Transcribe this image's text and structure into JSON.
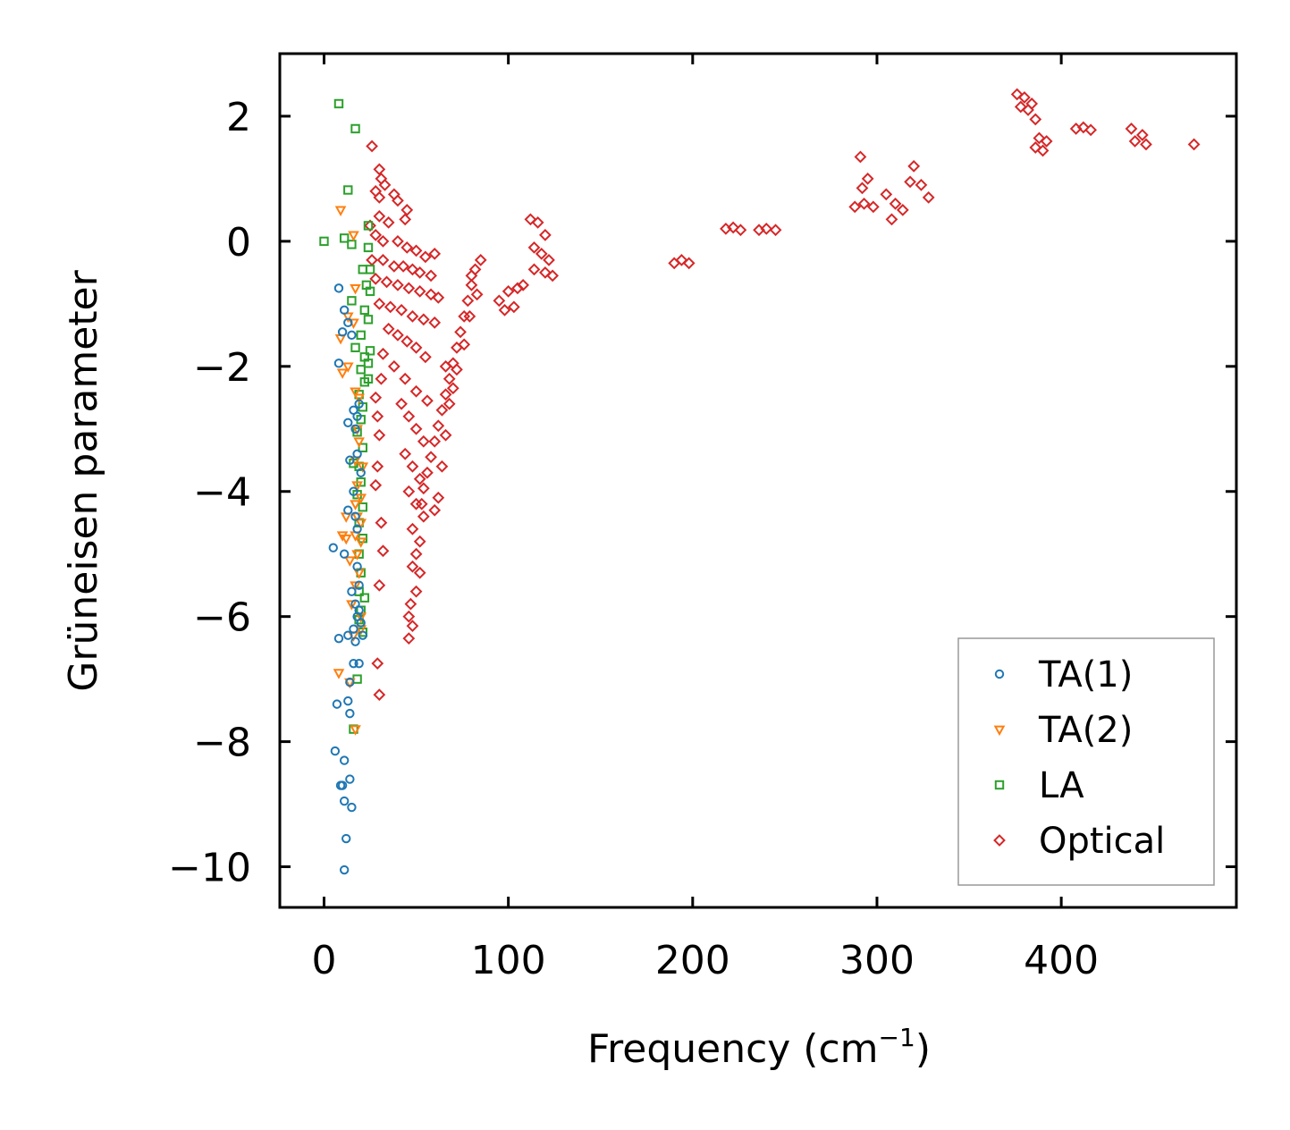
{
  "chart_data": {
    "type": "scatter",
    "title": "",
    "xlabel": "Frequency (cm",
    "xlabel_sup": "−1",
    "xlabel_end": ")",
    "ylabel": "Grüneisen parameter",
    "xlim": [
      -24,
      495
    ],
    "ylim": [
      -10.65,
      3.0
    ],
    "xticks": [
      0,
      100,
      200,
      300,
      400
    ],
    "xtick_labels": [
      "0",
      "100",
      "200",
      "300",
      "400"
    ],
    "yticks": [
      2,
      0,
      -2,
      -4,
      -6,
      -8,
      -10
    ],
    "ytick_labels": [
      "2",
      "0",
      "−2",
      "−4",
      "−6",
      "−8",
      "−10"
    ],
    "legend_position": "lower-right",
    "colors": {
      "ta1": "#1f77b4",
      "ta2": "#ff7f0e",
      "la": "#2ca02c",
      "optical": "#d62728"
    },
    "series": [
      {
        "name": "TA(1)",
        "key": "ta1",
        "marker": "circle",
        "points": [
          [
            8,
            -0.75
          ],
          [
            11,
            -1.1
          ],
          [
            13,
            -1.3
          ],
          [
            10,
            -1.45
          ],
          [
            15,
            -1.5
          ],
          [
            8,
            -1.95
          ],
          [
            13,
            -2.9
          ],
          [
            16,
            -2.7
          ],
          [
            17,
            -3.0
          ],
          [
            18,
            -2.8
          ],
          [
            19,
            -2.6
          ],
          [
            14,
            -3.5
          ],
          [
            18,
            -3.4
          ],
          [
            20,
            -3.7
          ],
          [
            16,
            -4.0
          ],
          [
            17,
            -4.4
          ],
          [
            18,
            -4.6
          ],
          [
            13,
            -4.3
          ],
          [
            5,
            -4.9
          ],
          [
            11,
            -5.0
          ],
          [
            18,
            -5.2
          ],
          [
            19,
            -5.5
          ],
          [
            15,
            -5.6
          ],
          [
            17,
            -5.8
          ],
          [
            19,
            -5.9
          ],
          [
            18,
            -6.0
          ],
          [
            20,
            -6.1
          ],
          [
            16,
            -6.2
          ],
          [
            13,
            -6.3
          ],
          [
            8,
            -6.35
          ],
          [
            17,
            -6.4
          ],
          [
            21,
            -6.3
          ],
          [
            16,
            -6.75
          ],
          [
            19,
            -6.75
          ],
          [
            14,
            -7.05
          ],
          [
            7,
            -7.4
          ],
          [
            13,
            -7.35
          ],
          [
            14,
            -7.55
          ],
          [
            6,
            -8.15
          ],
          [
            11,
            -8.3
          ],
          [
            9,
            -8.7
          ],
          [
            10,
            -8.7
          ],
          [
            14,
            -8.6
          ],
          [
            11,
            -8.95
          ],
          [
            15,
            -9.05
          ],
          [
            12,
            -9.55
          ],
          [
            11,
            -10.05
          ]
        ]
      },
      {
        "name": "TA(2)",
        "key": "ta2",
        "marker": "triangle-down",
        "points": [
          [
            9,
            0.5
          ],
          [
            16,
            0.1
          ],
          [
            17,
            -0.75
          ],
          [
            13,
            -1.2
          ],
          [
            16,
            -1.3
          ],
          [
            9,
            -1.55
          ],
          [
            10,
            -2.1
          ],
          [
            13,
            -2.0
          ],
          [
            17,
            -2.4
          ],
          [
            19,
            -2.5
          ],
          [
            18,
            -3.0
          ],
          [
            19,
            -3.2
          ],
          [
            17,
            -3.5
          ],
          [
            21,
            -3.6
          ],
          [
            18,
            -3.9
          ],
          [
            20,
            -4.1
          ],
          [
            17,
            -4.2
          ],
          [
            18,
            -4.4
          ],
          [
            12,
            -4.4
          ],
          [
            20,
            -4.5
          ],
          [
            17,
            -4.7
          ],
          [
            10,
            -4.7
          ],
          [
            12,
            -4.75
          ],
          [
            20,
            -4.8
          ],
          [
            18,
            -5.0
          ],
          [
            19,
            -5.3
          ],
          [
            17,
            -5.5
          ],
          [
            14,
            -5.1
          ],
          [
            15,
            -5.8
          ],
          [
            20,
            -6.0
          ],
          [
            16,
            -6.3
          ],
          [
            20,
            -6.2
          ],
          [
            8,
            -6.9
          ],
          [
            14,
            -7.05
          ],
          [
            17,
            -7.8
          ]
        ]
      },
      {
        "name": "LA",
        "key": "la",
        "marker": "square",
        "points": [
          [
            8,
            2.2
          ],
          [
            17,
            1.8
          ],
          [
            13,
            0.82
          ],
          [
            0,
            0.0
          ],
          [
            11,
            0.05
          ],
          [
            15,
            -0.05
          ],
          [
            24,
            0.25
          ],
          [
            24,
            -0.1
          ],
          [
            21,
            -0.45
          ],
          [
            25,
            -0.45
          ],
          [
            23,
            -0.7
          ],
          [
            25,
            -0.8
          ],
          [
            15,
            -0.95
          ],
          [
            22,
            -1.1
          ],
          [
            24,
            -1.25
          ],
          [
            20,
            -1.5
          ],
          [
            17,
            -1.7
          ],
          [
            25,
            -1.75
          ],
          [
            22,
            -1.85
          ],
          [
            24,
            -1.95
          ],
          [
            20,
            -2.05
          ],
          [
            22,
            -2.25
          ],
          [
            24,
            -2.2
          ],
          [
            19,
            -2.45
          ],
          [
            21,
            -2.65
          ],
          [
            20,
            -2.85
          ],
          [
            18,
            -3.05
          ],
          [
            21,
            -3.3
          ],
          [
            16,
            -3.55
          ],
          [
            19,
            -3.6
          ],
          [
            20,
            -3.85
          ],
          [
            18,
            -4.05
          ],
          [
            21,
            -4.25
          ],
          [
            19,
            -4.5
          ],
          [
            21,
            -4.75
          ],
          [
            19,
            -5.0
          ],
          [
            20,
            -5.3
          ],
          [
            19,
            -5.6
          ],
          [
            22,
            -5.7
          ],
          [
            20,
            -5.9
          ],
          [
            19,
            -6.05
          ],
          [
            21,
            -6.25
          ],
          [
            18,
            -7.0
          ],
          [
            16,
            -7.8
          ]
        ]
      },
      {
        "name": "Optical",
        "key": "optical",
        "marker": "diamond",
        "points": [
          [
            26,
            1.52
          ],
          [
            30,
            1.15
          ],
          [
            31,
            1.0
          ],
          [
            33,
            0.9
          ],
          [
            28,
            0.8
          ],
          [
            30,
            0.7
          ],
          [
            38,
            0.75
          ],
          [
            40,
            0.65
          ],
          [
            45,
            0.5
          ],
          [
            30,
            0.4
          ],
          [
            35,
            0.3
          ],
          [
            44,
            0.35
          ],
          [
            25,
            0.25
          ],
          [
            28,
            0.1
          ],
          [
            32,
            0.0
          ],
          [
            40,
            0.0
          ],
          [
            45,
            -0.1
          ],
          [
            50,
            -0.15
          ],
          [
            55,
            -0.25
          ],
          [
            60,
            -0.2
          ],
          [
            26,
            -0.3
          ],
          [
            32,
            -0.3
          ],
          [
            38,
            -0.4
          ],
          [
            43,
            -0.4
          ],
          [
            48,
            -0.45
          ],
          [
            52,
            -0.5
          ],
          [
            58,
            -0.55
          ],
          [
            28,
            -0.6
          ],
          [
            34,
            -0.65
          ],
          [
            40,
            -0.7
          ],
          [
            46,
            -0.75
          ],
          [
            52,
            -0.8
          ],
          [
            58,
            -0.85
          ],
          [
            62,
            -0.9
          ],
          [
            30,
            -1.0
          ],
          [
            36,
            -1.05
          ],
          [
            42,
            -1.1
          ],
          [
            48,
            -1.2
          ],
          [
            54,
            -1.25
          ],
          [
            60,
            -1.3
          ],
          [
            35,
            -1.4
          ],
          [
            40,
            -1.5
          ],
          [
            45,
            -1.6
          ],
          [
            50,
            -1.7
          ],
          [
            55,
            -1.85
          ],
          [
            38,
            -2.0
          ],
          [
            44,
            -2.2
          ],
          [
            50,
            -2.4
          ],
          [
            56,
            -2.55
          ],
          [
            42,
            -2.6
          ],
          [
            46,
            -2.8
          ],
          [
            50,
            -3.0
          ],
          [
            54,
            -3.2
          ],
          [
            44,
            -3.4
          ],
          [
            48,
            -3.6
          ],
          [
            52,
            -3.8
          ],
          [
            46,
            -4.0
          ],
          [
            50,
            -4.2
          ],
          [
            54,
            -4.4
          ],
          [
            48,
            -4.6
          ],
          [
            52,
            -4.8
          ],
          [
            50,
            -5.0
          ],
          [
            48,
            -5.2
          ],
          [
            52,
            -5.3
          ],
          [
            50,
            -5.6
          ],
          [
            47,
            -5.8
          ],
          [
            46,
            -6.0
          ],
          [
            48,
            -6.15
          ],
          [
            46,
            -6.35
          ],
          [
            31,
            -4.5
          ],
          [
            32,
            -4.95
          ],
          [
            30,
            -5.5
          ],
          [
            29,
            -6.75
          ],
          [
            30,
            -7.25
          ],
          [
            29,
            -3.6
          ],
          [
            30,
            -3.1
          ],
          [
            28,
            -3.9
          ],
          [
            28,
            -2.5
          ],
          [
            29,
            -2.8
          ],
          [
            31,
            -2.2
          ],
          [
            32,
            -1.8
          ],
          [
            85,
            -0.3
          ],
          [
            82,
            -0.45
          ],
          [
            80,
            -0.7
          ],
          [
            78,
            -0.95
          ],
          [
            76,
            -1.2
          ],
          [
            74,
            -1.45
          ],
          [
            72,
            -1.7
          ],
          [
            70,
            -1.95
          ],
          [
            68,
            -2.2
          ],
          [
            66,
            -2.45
          ],
          [
            64,
            -2.7
          ],
          [
            62,
            -2.95
          ],
          [
            60,
            -3.2
          ],
          [
            58,
            -3.45
          ],
          [
            56,
            -3.7
          ],
          [
            54,
            -3.95
          ],
          [
            53,
            -4.2
          ],
          [
            66,
            -2.0
          ],
          [
            68,
            -2.6
          ],
          [
            66,
            -3.1
          ],
          [
            64,
            -3.6
          ],
          [
            62,
            -4.1
          ],
          [
            60,
            -4.3
          ],
          [
            80,
            -0.55
          ],
          [
            83,
            -0.85
          ],
          [
            79,
            -1.2
          ],
          [
            76,
            -1.65
          ],
          [
            72,
            -2.05
          ],
          [
            70,
            -2.35
          ],
          [
            95,
            -0.95
          ],
          [
            100,
            -0.8
          ],
          [
            105,
            -0.75
          ],
          [
            98,
            -1.1
          ],
          [
            103,
            -1.05
          ],
          [
            108,
            -0.7
          ],
          [
            112,
            0.35
          ],
          [
            116,
            0.3
          ],
          [
            120,
            0.1
          ],
          [
            114,
            -0.1
          ],
          [
            118,
            -0.2
          ],
          [
            122,
            -0.3
          ],
          [
            114,
            -0.45
          ],
          [
            120,
            -0.5
          ],
          [
            124,
            -0.55
          ],
          [
            190,
            -0.35
          ],
          [
            194,
            -0.3
          ],
          [
            198,
            -0.35
          ],
          [
            218,
            0.2
          ],
          [
            222,
            0.22
          ],
          [
            226,
            0.18
          ],
          [
            236,
            0.18
          ],
          [
            240,
            0.2
          ],
          [
            245,
            0.18
          ],
          [
            291,
            1.35
          ],
          [
            295,
            1.0
          ],
          [
            293,
            0.6
          ],
          [
            288,
            0.55
          ],
          [
            298,
            0.55
          ],
          [
            292,
            0.85
          ],
          [
            305,
            0.75
          ],
          [
            310,
            0.6
          ],
          [
            314,
            0.5
          ],
          [
            308,
            0.35
          ],
          [
            320,
            1.2
          ],
          [
            324,
            0.9
          ],
          [
            328,
            0.7
          ],
          [
            318,
            0.95
          ],
          [
            376,
            2.35
          ],
          [
            380,
            2.3
          ],
          [
            384,
            2.2
          ],
          [
            378,
            2.15
          ],
          [
            382,
            2.1
          ],
          [
            386,
            1.95
          ],
          [
            388,
            1.65
          ],
          [
            392,
            1.6
          ],
          [
            386,
            1.5
          ],
          [
            390,
            1.45
          ],
          [
            408,
            1.8
          ],
          [
            412,
            1.82
          ],
          [
            416,
            1.78
          ],
          [
            438,
            1.8
          ],
          [
            444,
            1.7
          ],
          [
            440,
            1.6
          ],
          [
            446,
            1.55
          ],
          [
            472,
            1.55
          ]
        ]
      }
    ]
  }
}
